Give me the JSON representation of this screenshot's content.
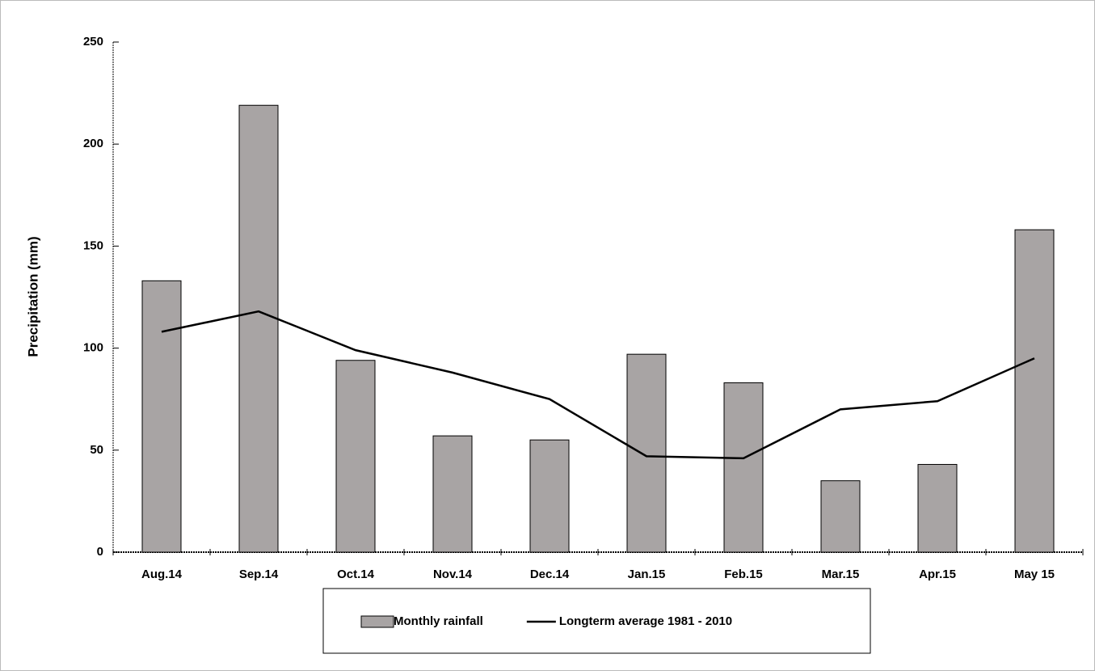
{
  "chart_data": {
    "type": "bar",
    "y_label": "Precipitation (mm)",
    "categories": [
      "Aug.14",
      "Sep.14",
      "Oct.14",
      "Nov.14",
      "Dec.14",
      "Jan.15",
      "Feb.15",
      "Mar.15",
      "Apr.15",
      "May 15"
    ],
    "series": [
      {
        "name": "Monthly rainfall",
        "type": "bar",
        "color": "#a8a4a4",
        "values": [
          133,
          219,
          94,
          57,
          55,
          97,
          83,
          35,
          43,
          158
        ]
      },
      {
        "name": "Longterm average 1981 - 2010",
        "type": "line",
        "color": "#000000",
        "values": [
          108,
          118,
          99,
          88,
          75,
          47,
          46,
          70,
          74,
          95
        ]
      }
    ],
    "ylim": [
      0,
      250
    ],
    "yticks": [
      0,
      50,
      100,
      150,
      200,
      250
    ],
    "grid": false,
    "legend": "bottom"
  }
}
